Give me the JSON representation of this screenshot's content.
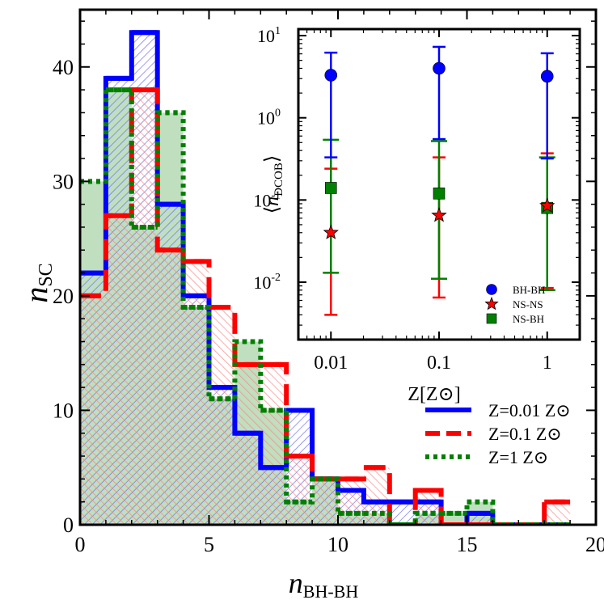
{
  "chart_data": [
    {
      "type": "histogram",
      "xlabel_main": "n",
      "xlabel_sub": "BH-BH",
      "ylabel_main": "n",
      "ylabel_sub": "SC",
      "xlim": [
        0,
        20
      ],
      "ylim": [
        0,
        45
      ],
      "xticks": [
        0,
        5,
        10,
        15,
        20
      ],
      "yticks": [
        0,
        10,
        20,
        30,
        40
      ],
      "bin_edges": [
        0,
        1,
        2,
        3,
        4,
        5,
        6,
        7,
        8,
        9,
        10,
        11,
        12,
        13,
        14,
        15,
        16,
        17,
        18,
        19
      ],
      "series": [
        {
          "name": "Z=0.01 Z⊙",
          "color": "#0000ff",
          "dash": "solid",
          "values": [
            22,
            39,
            43,
            28,
            20,
            12,
            8,
            5,
            10,
            4,
            3,
            2,
            2,
            2,
            0,
            1,
            0,
            0,
            0
          ]
        },
        {
          "name": "Z=0.1 Z⊙",
          "color": "#ff0000",
          "dash": "dashed",
          "values": [
            20,
            27,
            38,
            24,
            23,
            19,
            14,
            14,
            6,
            4,
            4,
            5,
            0,
            3,
            0,
            0,
            0,
            0,
            2
          ]
        },
        {
          "name": "Z=1 Z⊙",
          "color": "#008000",
          "dash": "dotted",
          "values": [
            30,
            38,
            26,
            36,
            19,
            11,
            16,
            10,
            2,
            4,
            1,
            1,
            0,
            1,
            1,
            2,
            0,
            0,
            0
          ]
        }
      ],
      "legend": [
        "Z=0.01 Z⊙",
        "Z=0.1 Z⊙",
        "Z=1 Z⊙"
      ],
      "legend_position": "lower-right"
    },
    {
      "type": "scatter",
      "xscale": "log",
      "yscale": "log",
      "xlabel": "Z[Z⊙]",
      "ylabel_main": "n",
      "ylabel_sub": "DCOB",
      "xlim": [
        0.005,
        2
      ],
      "ylim": [
        0.002,
        12
      ],
      "xticks": [
        {
          "value": 0.01,
          "label": "0.01"
        },
        {
          "value": 0.1,
          "label": "0.1"
        },
        {
          "value": 1,
          "label": "1"
        }
      ],
      "yticks": [
        {
          "value": 0.01,
          "base": "10",
          "exp": "-2"
        },
        {
          "value": 0.1,
          "base": "10",
          "exp": "-1"
        },
        {
          "value": 1,
          "base": "10",
          "exp": "0"
        },
        {
          "value": 10,
          "base": "10",
          "exp": "1"
        }
      ],
      "series": [
        {
          "name": "BH-BH",
          "color": "#0000ff",
          "marker": "circle",
          "points": [
            {
              "x": 0.01,
              "y": 3.3,
              "low": 0.33,
              "high": 6.2
            },
            {
              "x": 0.1,
              "y": 4.0,
              "low": 0.55,
              "high": 7.3
            },
            {
              "x": 1,
              "y": 3.2,
              "low": 0.32,
              "high": 6.1
            }
          ]
        },
        {
          "name": "NS-NS",
          "color": "#ff0000",
          "marker": "star",
          "points": [
            {
              "x": 0.01,
              "y": 0.04,
              "low": 0.004,
              "high": 0.24
            },
            {
              "x": 0.1,
              "y": 0.065,
              "low": 0.0065,
              "high": 0.33
            },
            {
              "x": 1,
              "y": 0.085,
              "low": 0.0085,
              "high": 0.37
            }
          ]
        },
        {
          "name": "NS-BH",
          "color": "#008000",
          "marker": "square",
          "points": [
            {
              "x": 0.01,
              "y": 0.14,
              "low": 0.013,
              "high": 0.54
            },
            {
              "x": 0.1,
              "y": 0.12,
              "low": 0.011,
              "high": 0.52
            },
            {
              "x": 1,
              "y": 0.08,
              "low": 0.008,
              "high": 0.33
            }
          ]
        }
      ],
      "legend": [
        "BH-BH",
        "NS-NS",
        "NS-BH"
      ],
      "legend_position": "lower-right"
    }
  ]
}
